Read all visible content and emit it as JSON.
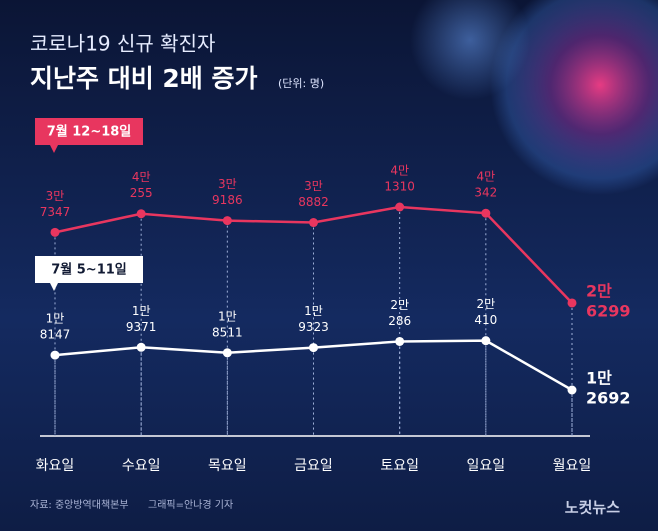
{
  "chart_data": {
    "type": "line",
    "title": "코로나19 신규 확진자",
    "subtitle": "지난주 대비 2배 증가",
    "unit": "(단위: 명)",
    "categories": [
      "화요일",
      "수요일",
      "목요일",
      "금요일",
      "토요일",
      "일요일",
      "월요일"
    ],
    "series": [
      {
        "name": "7월 12~18일",
        "color": "#e8365f",
        "values": [
          37347,
          40255,
          39186,
          38882,
          41310,
          40342,
          26299
        ],
        "value_labels": [
          [
            "3만",
            "7347"
          ],
          [
            "4만",
            "255"
          ],
          [
            "3만",
            "9186"
          ],
          [
            "3만",
            "8882"
          ],
          [
            "4만",
            "1310"
          ],
          [
            "4만",
            "342"
          ],
          [
            "2만",
            "6299"
          ]
        ]
      },
      {
        "name": "7월 5~11일",
        "color": "#ffffff",
        "values": [
          18147,
          19371,
          18511,
          19323,
          20286,
          20410,
          12692
        ],
        "value_labels": [
          [
            "1만",
            "8147"
          ],
          [
            "1만",
            "9371"
          ],
          [
            "1만",
            "8511"
          ],
          [
            "1만",
            "9323"
          ],
          [
            "2만",
            "286"
          ],
          [
            "2만",
            "410"
          ],
          [
            "1만",
            "2692"
          ]
        ]
      }
    ],
    "source": "자료: 중앙방역대책본부",
    "credit": "그래픽=안나경 기자",
    "logo": "노컷뉴스"
  }
}
